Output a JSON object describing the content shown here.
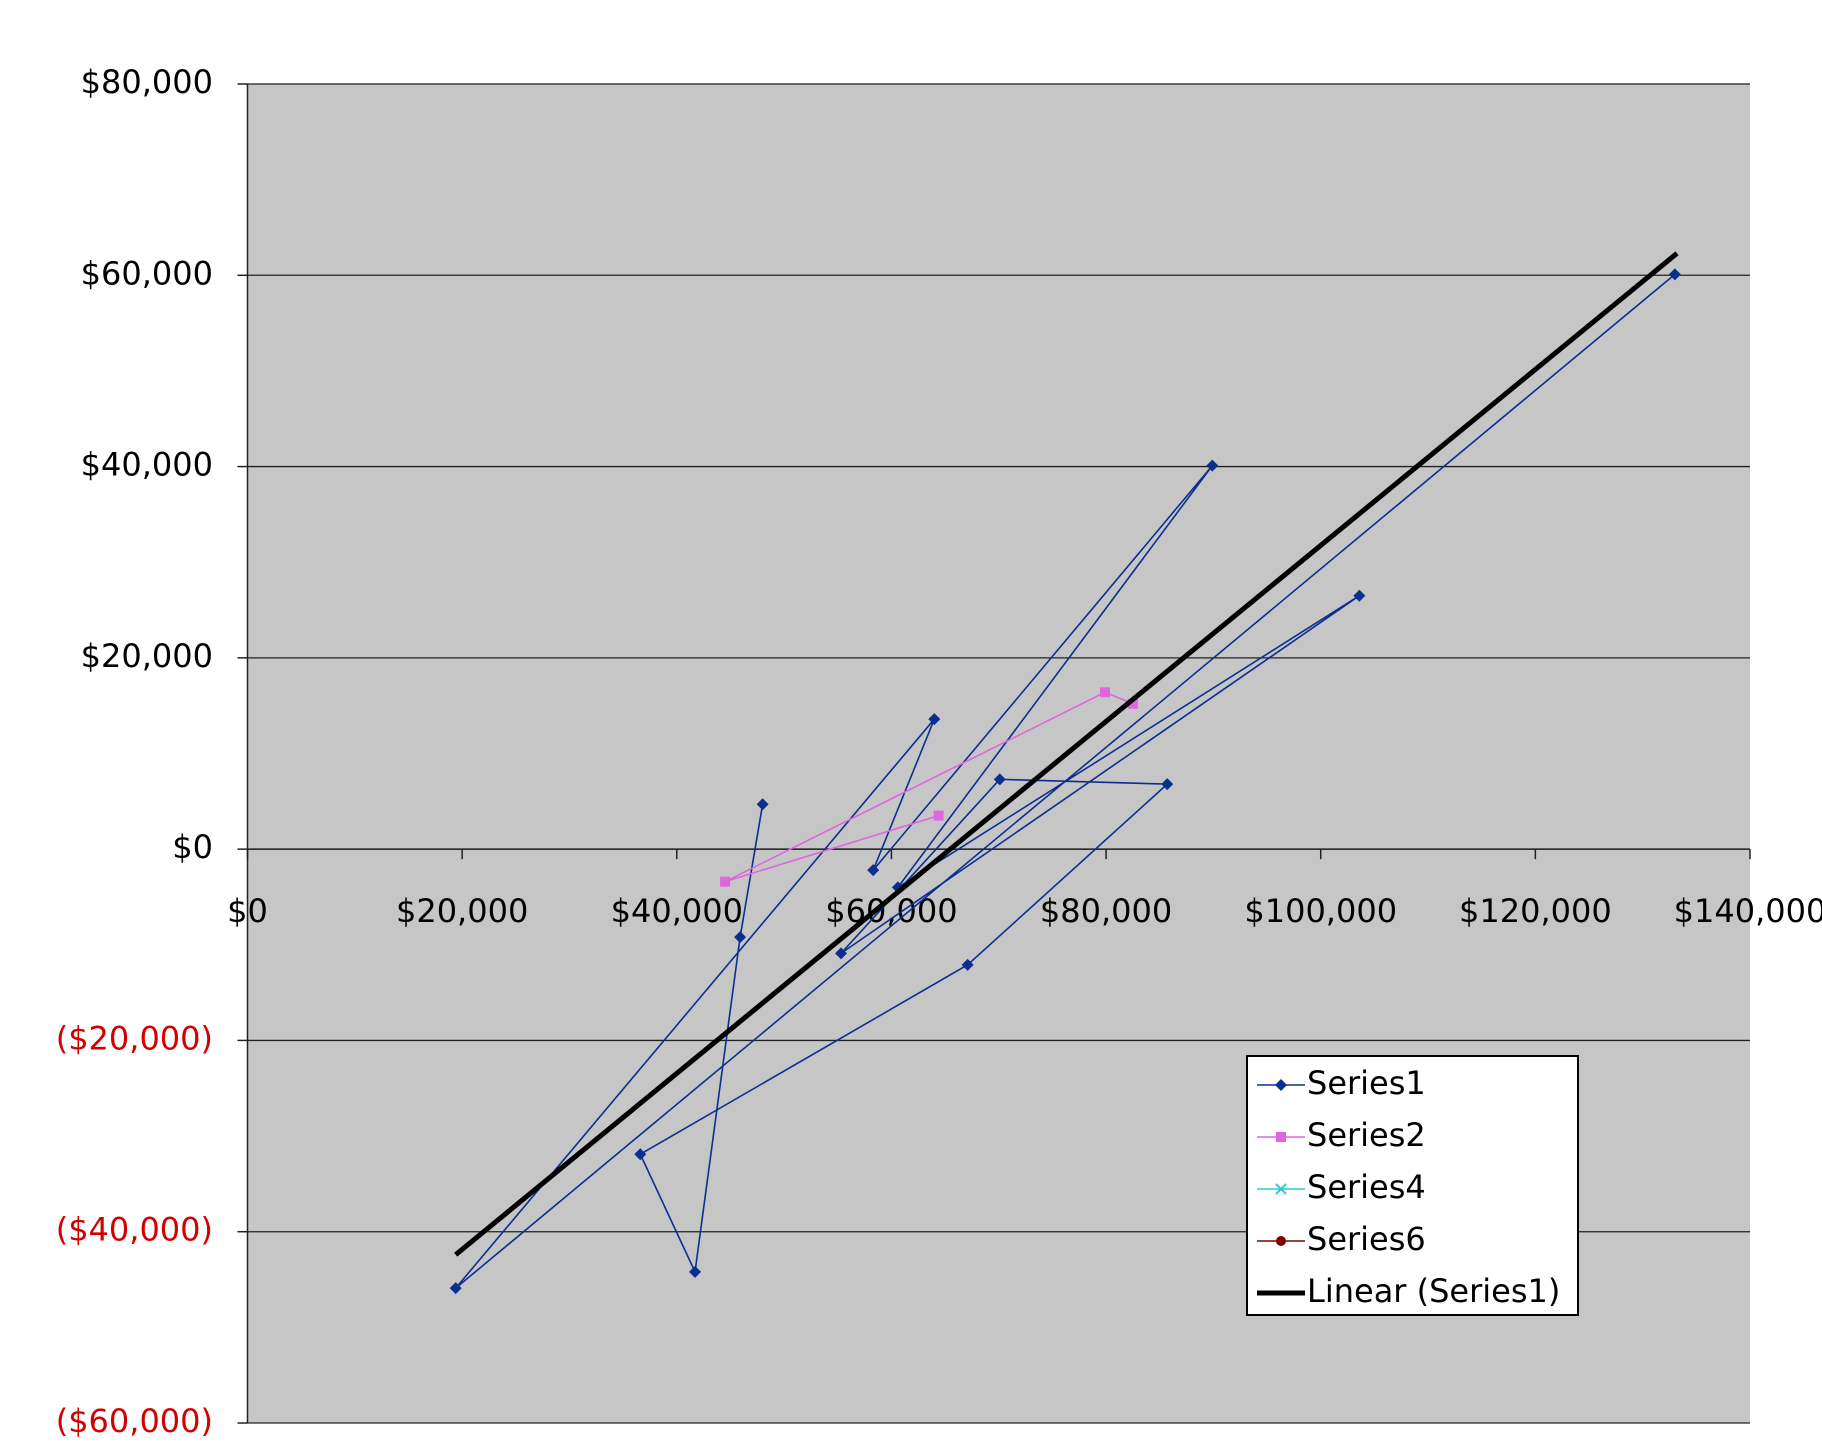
{
  "chart_data": {
    "type": "scatter",
    "xlim": [
      0,
      140000
    ],
    "xticks": [
      {
        "value": 0,
        "label": "$0"
      },
      {
        "value": 20000,
        "label": "$20,000"
      },
      {
        "value": 40000,
        "label": "$40,000"
      },
      {
        "value": 60000,
        "label": "$60,000"
      },
      {
        "value": 80000,
        "label": "$80,000"
      },
      {
        "value": 100000,
        "label": "$100,000"
      },
      {
        "value": 120000,
        "label": "$120,000"
      },
      {
        "value": 140000,
        "label": "$140,000"
      }
    ],
    "ylim": [
      -60000,
      80000
    ],
    "yticks": [
      {
        "value": -60000,
        "label": "($60,000)"
      },
      {
        "value": -40000,
        "label": "($40,000)"
      },
      {
        "value": -20000,
        "label": "($20,000)"
      },
      {
        "value": 0,
        "label": "$0"
      },
      {
        "value": 20000,
        "label": "$20,000"
      },
      {
        "value": 40000,
        "label": "$40,000"
      },
      {
        "value": 60000,
        "label": "$60,000"
      },
      {
        "value": 80000,
        "label": "$80,000"
      }
    ],
    "negative_tick_color": "#d40000",
    "grid": true,
    "legend": "lower-right",
    "series": [
      {
        "name": "Series1",
        "color": "#0b2f8f",
        "marker": "diamond",
        "x": [
          48000,
          45900,
          41700,
          36600,
          67100,
          85700,
          70100,
          55300,
          103600,
          60600,
          89900,
          58300,
          64000,
          19400,
          133000
        ],
        "values": [
          4700,
          -9200,
          -44200,
          -31900,
          -12100,
          6800,
          7300,
          -10900,
          26500,
          -4000,
          40100,
          -2200,
          13600,
          -45900,
          60100
        ]
      },
      {
        "name": "Series2",
        "color": "#e066e0",
        "marker": "square",
        "x": [
          64400,
          44500,
          79900,
          82500
        ],
        "values": [
          3500,
          -3400,
          16400,
          15200
        ]
      },
      {
        "name": "Series4",
        "color": "#33cccc",
        "marker": "x",
        "x": [],
        "values": []
      },
      {
        "name": "Series6",
        "color": "#800000",
        "marker": "circle",
        "x": [],
        "values": []
      },
      {
        "name": "Linear (Series1)",
        "color": "#000000",
        "marker": "none",
        "trend": true,
        "x": [
          19400,
          133200
        ],
        "values": [
          -42400,
          62300
        ]
      }
    ]
  }
}
